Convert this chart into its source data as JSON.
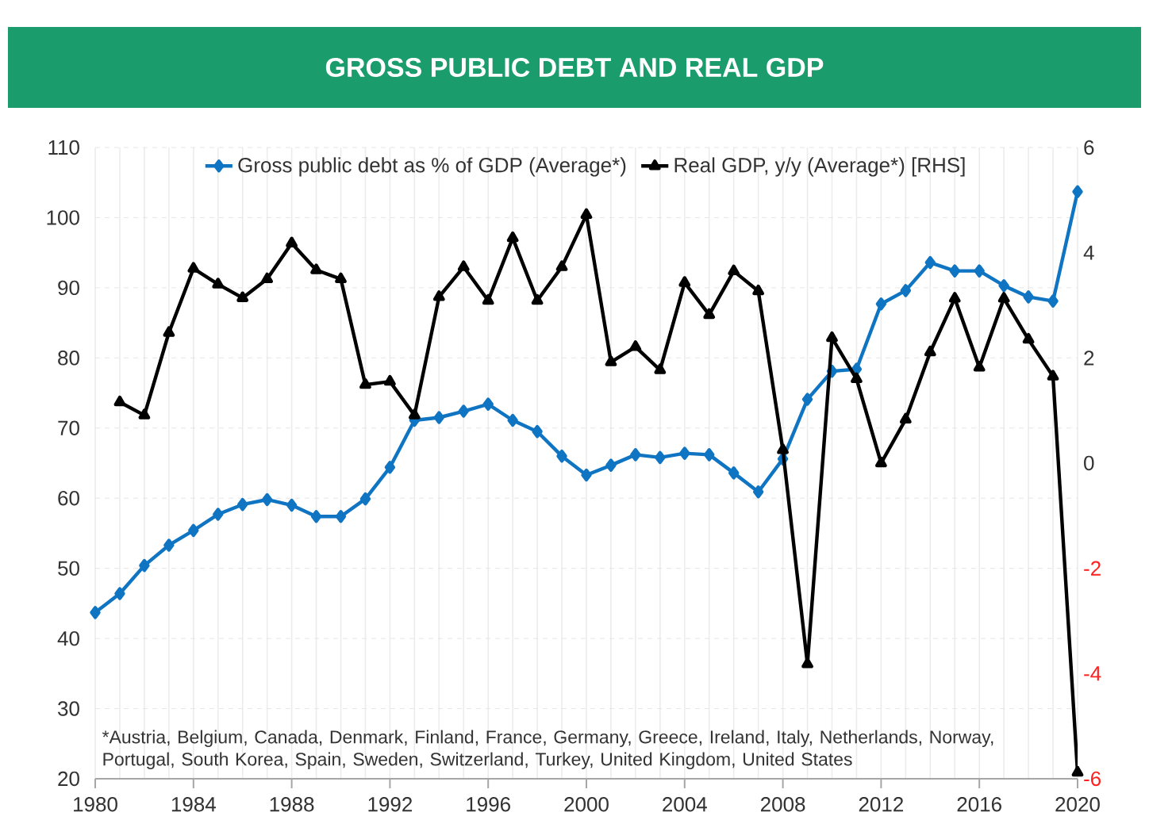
{
  "chart_data": {
    "type": "line",
    "title": "GROSS PUBLIC DEBT AND REAL GDP",
    "x": [
      1980,
      1981,
      1982,
      1983,
      1984,
      1985,
      1986,
      1987,
      1988,
      1989,
      1990,
      1991,
      1992,
      1993,
      1994,
      1995,
      1996,
      1997,
      1998,
      1999,
      2000,
      2001,
      2002,
      2003,
      2004,
      2005,
      2006,
      2007,
      2008,
      2009,
      2010,
      2011,
      2012,
      2013,
      2014,
      2015,
      2016,
      2017,
      2018,
      2019,
      2020
    ],
    "series": [
      {
        "name": "Gross public debt as % of GDP (Average*)",
        "color": "#0f75c3",
        "marker": "diamond",
        "values": [
          43.7,
          46.4,
          50.4,
          53.3,
          55.4,
          57.7,
          59.1,
          59.8,
          59.0,
          57.4,
          57.4,
          59.9,
          64.4,
          71.1,
          71.5,
          72.4,
          73.4,
          71.1,
          69.5,
          66.0,
          63.3,
          64.7,
          66.2,
          65.8,
          66.4,
          66.2,
          63.6,
          60.9,
          65.6,
          74.1,
          78.1,
          78.4,
          87.7,
          89.6,
          93.6,
          92.4,
          92.4,
          90.3,
          88.7,
          88.1,
          103.7
        ]
      },
      {
        "name": "Real GDP, y/y (Average*) [RHS]",
        "color": "#000000",
        "marker": "triangle",
        "axis": "y2",
        "values": [
          null,
          1.16,
          0.91,
          2.48,
          3.7,
          3.4,
          3.14,
          3.5,
          4.18,
          3.67,
          3.5,
          1.49,
          1.55,
          0.91,
          3.16,
          3.73,
          3.09,
          4.28,
          3.09,
          3.73,
          4.72,
          1.92,
          2.21,
          1.77,
          3.43,
          2.82,
          3.65,
          3.27,
          0.25,
          -3.82,
          2.38,
          1.6,
          0.0,
          0.83,
          2.11,
          3.13,
          1.82,
          3.13,
          2.35,
          1.65,
          -5.88
        ]
      }
    ],
    "xlim": [
      1980,
      2020
    ],
    "xticks": [
      1980,
      1984,
      1988,
      1992,
      1996,
      2000,
      2004,
      2008,
      2012,
      2016,
      2020
    ],
    "ylim": [
      20,
      110
    ],
    "yticks": [
      20,
      30,
      40,
      50,
      60,
      70,
      80,
      90,
      100,
      110
    ],
    "y2lim": [
      -6,
      6
    ],
    "y2ticks": [
      -6,
      -4,
      -2,
      0,
      2,
      4,
      6
    ],
    "grid": true,
    "legend": "top",
    "line_style": "solid",
    "annotations": [
      "*Austria, Belgium, Canada, Denmark, Finland, France, Germany, Greece, Ireland, Italy, Netherlands, Norway, Portugal, South Korea, Spain, Sweden, Switzerland, Turkey, United Kingdom, United States"
    ]
  }
}
